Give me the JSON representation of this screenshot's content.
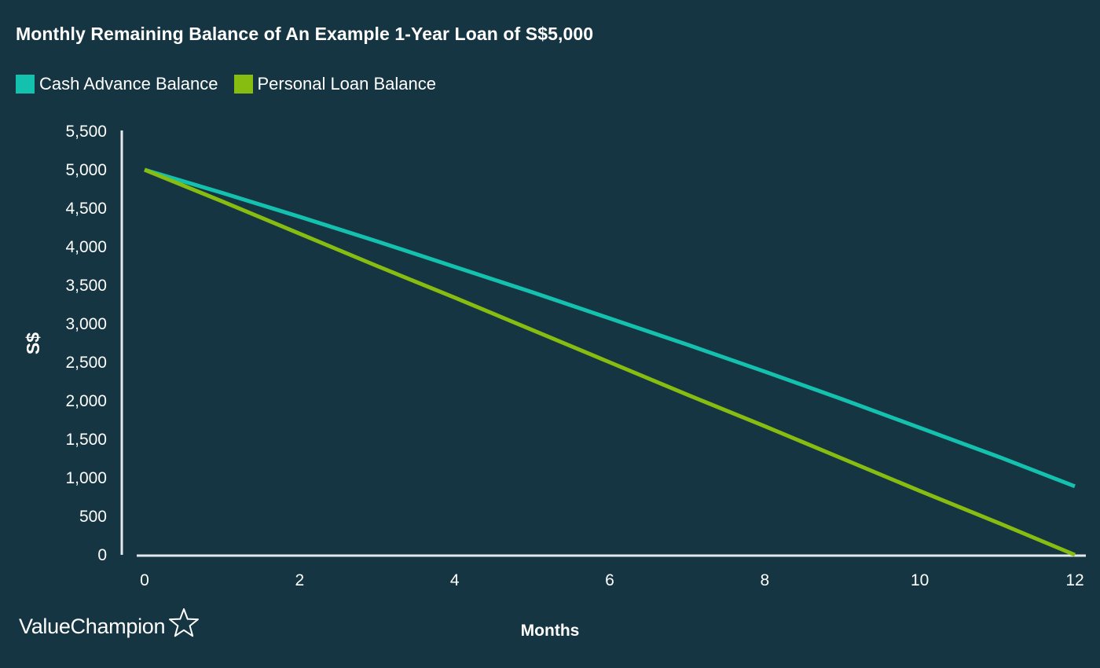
{
  "colors": {
    "background": "#163542",
    "axis": "#e6e9eb",
    "text": "#ffffff",
    "cash_advance": "#14c1ae",
    "personal_loan": "#86bd10"
  },
  "brand": {
    "name": "ValueChampion",
    "icon": "star-outline-icon"
  },
  "chart_data": {
    "type": "line",
    "title": "Monthly Remaining Balance of An Example 1-Year Loan of S$5,000",
    "xlabel": "Months",
    "ylabel": "S$",
    "xlim": [
      0,
      12
    ],
    "ylim": [
      0,
      5500
    ],
    "x_ticks": [
      {
        "value": 0,
        "label": "0"
      },
      {
        "value": 2,
        "label": "2"
      },
      {
        "value": 4,
        "label": "4"
      },
      {
        "value": 6,
        "label": "6"
      },
      {
        "value": 8,
        "label": "8"
      },
      {
        "value": 10,
        "label": "10"
      },
      {
        "value": 12,
        "label": "12"
      }
    ],
    "y_ticks": [
      {
        "value": 0,
        "label": "0"
      },
      {
        "value": 500,
        "label": "500"
      },
      {
        "value": 1000,
        "label": "1,000"
      },
      {
        "value": 1500,
        "label": "1,500"
      },
      {
        "value": 2000,
        "label": "2,000"
      },
      {
        "value": 2500,
        "label": "2,500"
      },
      {
        "value": 3000,
        "label": "3,000"
      },
      {
        "value": 3500,
        "label": "3,500"
      },
      {
        "value": 4000,
        "label": "4,000"
      },
      {
        "value": 4500,
        "label": "4,500"
      },
      {
        "value": 5000,
        "label": "5,000"
      },
      {
        "value": 5500,
        "label": "5,500"
      }
    ],
    "grid": false,
    "legend_position": "top-left",
    "x": [
      0,
      1,
      2,
      3,
      4,
      5,
      6,
      7,
      8,
      9,
      10,
      11,
      12
    ],
    "series": [
      {
        "name": "Cash Advance Balance",
        "color": "#14c1ae",
        "values": [
          5000,
          4700,
          4390,
          4070,
          3740,
          3410,
          3070,
          2730,
          2380,
          2020,
          1650,
          1280,
          890
        ]
      },
      {
        "name": "Personal Loan Balance",
        "color": "#86bd10",
        "values": [
          5000,
          4590,
          4170,
          3750,
          3340,
          2920,
          2500,
          2080,
          1670,
          1250,
          830,
          420,
          0
        ]
      }
    ]
  }
}
